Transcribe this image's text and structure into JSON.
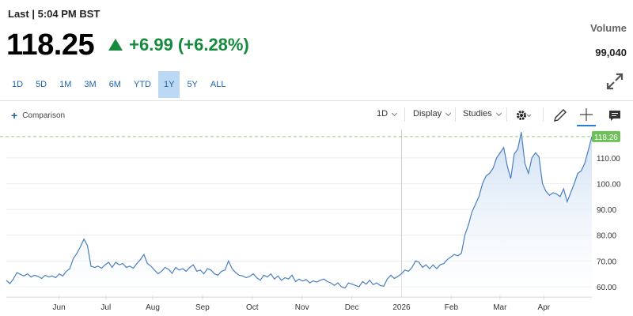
{
  "quote": {
    "last_label": "Last | 5:04 PM BST",
    "price": "118.25",
    "change": "+6.99 (+6.28%)",
    "volume_label": "Volume",
    "volume_value": "99,040",
    "up_color": "#158a3c"
  },
  "range_tabs": [
    {
      "label": "1D",
      "active": false
    },
    {
      "label": "5D",
      "active": false
    },
    {
      "label": "1M",
      "active": false
    },
    {
      "label": "3M",
      "active": false
    },
    {
      "label": "6M",
      "active": false
    },
    {
      "label": "YTD",
      "active": false
    },
    {
      "label": "1Y",
      "active": true
    },
    {
      "label": "5Y",
      "active": false
    },
    {
      "label": "ALL",
      "active": false
    }
  ],
  "toolbar": {
    "comparison_label": "Comparison",
    "interval_label": "1D",
    "display_label": "Display",
    "studies_label": "Studies",
    "icons": [
      "settings-gear-icon",
      "pencil-draw-icon",
      "crosshair-icon",
      "comment-icon"
    ]
  },
  "chart_data": {
    "type": "area",
    "x_tick_labels": [
      "Jun",
      "Jul",
      "Aug",
      "Sep",
      "Oct",
      "Nov",
      "Dec",
      "2026",
      "Feb",
      "Mar",
      "Apr"
    ],
    "y_tick_labels": [
      "110.00",
      "100.00",
      "90.00",
      "80.00",
      "70.00",
      "60.00"
    ],
    "ylim": [
      56,
      121
    ],
    "last_value_label": "118.26",
    "last_value": 118.26,
    "line_color": "#4a7fc0",
    "fill_color": "#cfe0f3",
    "reference_line_color": "#8fcf6a",
    "series": [
      {
        "values": [
          62.5,
          61.2,
          63.0,
          65.5,
          64.8,
          64.2,
          65.0,
          63.8,
          64.5,
          64.0,
          63.2,
          64.5,
          63.8,
          64.2,
          63.5,
          65.0,
          64.2,
          66.0,
          67.0,
          71.0,
          73.0,
          75.5,
          78.5,
          76.0,
          68.0,
          67.5,
          68.0,
          67.2,
          68.5,
          69.5,
          67.5,
          69.5,
          68.5,
          69.0,
          67.5,
          68.0,
          67.2,
          69.0,
          70.5,
          72.5,
          69.0,
          68.0,
          66.5,
          65.0,
          66.0,
          67.5,
          66.8,
          65.2,
          67.5,
          66.5,
          67.0,
          66.0,
          67.5,
          68.5,
          66.0,
          66.5,
          65.0,
          67.0,
          66.5,
          65.0,
          64.5,
          66.0,
          66.5,
          70.0,
          67.0,
          65.5,
          64.5,
          64.2,
          63.5,
          64.0,
          65.0,
          63.5,
          62.5,
          64.5,
          63.8,
          65.0,
          63.0,
          64.2,
          62.5,
          63.5,
          63.0,
          64.5,
          62.0,
          63.0,
          62.2,
          62.8,
          61.5,
          62.3,
          61.8,
          62.5,
          63.0,
          62.0,
          61.5,
          60.5,
          61.5,
          60.0,
          59.5,
          61.5,
          61.0,
          60.5,
          60.0,
          62.0,
          61.0,
          62.5,
          60.8,
          61.5,
          60.5,
          60.2,
          63.0,
          64.5,
          63.2,
          64.0,
          65.0,
          66.5,
          66.0,
          67.5,
          70.0,
          69.5,
          67.5,
          68.5,
          67.0,
          68.5,
          67.0,
          68.5,
          69.0,
          70.5,
          71.5,
          72.5,
          72.0,
          73.0,
          80.0,
          84.0,
          89.0,
          92.0,
          95.0,
          100.0,
          103.0,
          104.0,
          106.0,
          110.0,
          112.0,
          114.0,
          107.0,
          102.0,
          111.5,
          113.5,
          120.0,
          108.0,
          104.0,
          110.0,
          112.0,
          110.5,
          100.0,
          97.0,
          95.5,
          96.5,
          96.0,
          95.0,
          98.0,
          93.0,
          96.5,
          100.0,
          104.0,
          105.0,
          108.0,
          113.0,
          118.26
        ],
        "x_start": "2025-04-25",
        "x_end": "2026-04-24"
      }
    ],
    "grid": true,
    "legend": "none"
  }
}
